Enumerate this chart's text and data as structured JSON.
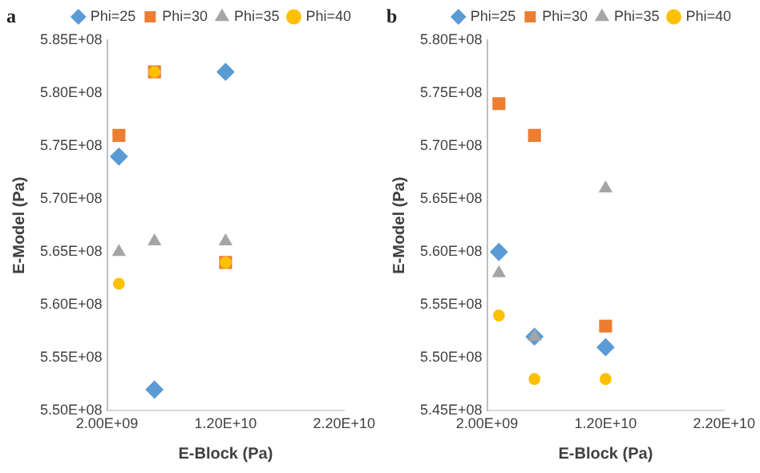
{
  "chart_data": [
    {
      "type": "scatter",
      "title": "a",
      "xlabel": "E-Block (Pa)",
      "ylabel": "E-Model (Pa)",
      "xlim": [
        2000000000,
        22000000000
      ],
      "xticks": [
        {
          "value": 2000000000,
          "label": "2.00E+09"
        },
        {
          "value": 12000000000,
          "label": "1.20E+10"
        },
        {
          "value": 22000000000,
          "label": "2.20E+10"
        }
      ],
      "ylim": [
        550000000,
        585000000
      ],
      "yticks": [
        {
          "value": 550000000,
          "label": "5.50E+08"
        },
        {
          "value": 555000000,
          "label": "5.55E+08"
        },
        {
          "value": 560000000,
          "label": "5.60E+08"
        },
        {
          "value": 565000000,
          "label": "5.65E+08"
        },
        {
          "value": 570000000,
          "label": "5.70E+08"
        },
        {
          "value": 575000000,
          "label": "5.75E+08"
        },
        {
          "value": 580000000,
          "label": "5.80E+08"
        },
        {
          "value": 585000000,
          "label": "5.85E+08"
        }
      ],
      "grid": false,
      "legend": "top",
      "x": [
        3000000000,
        6000000000,
        12000000000
      ],
      "series": [
        {
          "name": "Phi=25",
          "color": "#5b9bd5",
          "marker": "diamond",
          "values": [
            574000000,
            552000000,
            582000000
          ]
        },
        {
          "name": "Phi=30",
          "color": "#ed7d31",
          "marker": "square",
          "values": [
            576000000,
            582000000,
            564000000
          ]
        },
        {
          "name": "Phi=35",
          "color": "#a5a5a5",
          "marker": "triangle",
          "values": [
            565000000,
            566000000,
            566000000
          ]
        },
        {
          "name": "Phi=40",
          "color": "#ffc000",
          "marker": "circle",
          "values": [
            562000000,
            582000000,
            564000000
          ]
        }
      ]
    },
    {
      "type": "scatter",
      "title": "b",
      "xlabel": "E-Block (Pa)",
      "ylabel": "E-Model (Pa)",
      "xlim": [
        2000000000,
        22000000000
      ],
      "xticks": [
        {
          "value": 2000000000,
          "label": "2.00E+09"
        },
        {
          "value": 12000000000,
          "label": "1.20E+10"
        },
        {
          "value": 22000000000,
          "label": "2.20E+10"
        }
      ],
      "ylim": [
        545000000,
        580000000
      ],
      "yticks": [
        {
          "value": 545000000,
          "label": "5.45E+08"
        },
        {
          "value": 550000000,
          "label": "5.50E+08"
        },
        {
          "value": 555000000,
          "label": "5.55E+08"
        },
        {
          "value": 560000000,
          "label": "5.60E+08"
        },
        {
          "value": 565000000,
          "label": "5.65E+08"
        },
        {
          "value": 570000000,
          "label": "5.70E+08"
        },
        {
          "value": 575000000,
          "label": "5.75E+08"
        },
        {
          "value": 580000000,
          "label": "5.80E+08"
        }
      ],
      "grid": false,
      "legend": "top",
      "x": [
        3000000000,
        6000000000,
        12000000000
      ],
      "series": [
        {
          "name": "Phi=25",
          "color": "#5b9bd5",
          "marker": "diamond",
          "values": [
            560000000,
            552000000,
            551000000
          ]
        },
        {
          "name": "Phi=30",
          "color": "#ed7d31",
          "marker": "square",
          "values": [
            574000000,
            571000000,
            553000000
          ]
        },
        {
          "name": "Phi=35",
          "color": "#a5a5a5",
          "marker": "triangle",
          "values": [
            558000000,
            552000000,
            566000000
          ]
        },
        {
          "name": "Phi=40",
          "color": "#ffc000",
          "marker": "circle",
          "values": [
            554000000,
            548000000,
            548000000
          ]
        }
      ]
    }
  ]
}
